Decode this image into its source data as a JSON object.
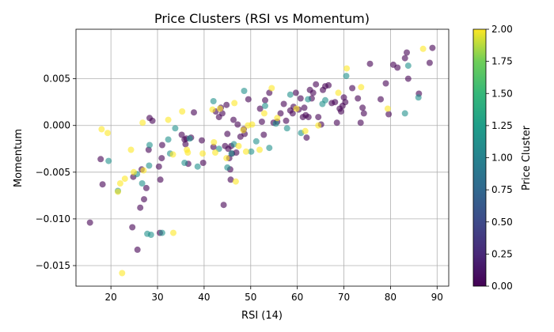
{
  "chart_data": {
    "type": "scatter",
    "title": "Price Clusters (RSI vs Momentum)",
    "xlabel": "RSI (14)",
    "ylabel": "Momentum",
    "xlim": [
      12.5,
      92.5
    ],
    "ylim": [
      -0.0172,
      0.0103
    ],
    "x_ticks": [
      20,
      30,
      40,
      50,
      60,
      70,
      80,
      90
    ],
    "y_ticks": [
      -0.015,
      -0.01,
      -0.005,
      0.0,
      0.005
    ],
    "y_tick_labels": [
      "−0.015",
      "−0.010",
      "−0.005",
      "0.000",
      "0.005"
    ],
    "grid": true,
    "colorbar": {
      "label": "Price Cluster",
      "min": 0.0,
      "max": 2.0,
      "ticks": [
        "0.00",
        "0.25",
        "0.50",
        "0.75",
        "1.00",
        "1.25",
        "1.50",
        "1.75",
        "2.00"
      ],
      "colormap": "viridis",
      "colors": [
        "#440154",
        "#21918c",
        "#fde725"
      ]
    },
    "point_alpha": 0.6,
    "series": [
      {
        "cluster": 0,
        "color": "#440154",
        "points": [
          [
            15.5,
            -0.0104
          ],
          [
            17.8,
            -0.0036
          ],
          [
            18.2,
            -0.0063
          ],
          [
            24.6,
            -0.0109
          ],
          [
            24.8,
            -0.0055
          ],
          [
            25.7,
            -0.0133
          ],
          [
            26.3,
            -0.0088
          ],
          [
            26.6,
            -0.0047
          ],
          [
            27.1,
            -0.0079
          ],
          [
            27.6,
            -0.0067
          ],
          [
            28.1,
            -0.0026
          ],
          [
            28.3,
            0.0008
          ],
          [
            28.9,
            0.0005
          ],
          [
            30.3,
            -0.0044
          ],
          [
            30.5,
            -0.0115
          ],
          [
            30.6,
            -0.0058
          ],
          [
            30.9,
            -0.0035
          ],
          [
            31.0,
            -0.0021
          ],
          [
            35.2,
            -0.001
          ],
          [
            35.8,
            -0.0015
          ],
          [
            36.0,
            -0.002
          ],
          [
            36.2,
            -0.0014
          ],
          [
            36.6,
            -0.0041
          ],
          [
            37.2,
            -0.0013
          ],
          [
            37.8,
            0.0014
          ],
          [
            39.5,
            -0.0016
          ],
          [
            39.8,
            -0.004
          ],
          [
            42.0,
            -0.0023
          ],
          [
            42.5,
            0.0015
          ],
          [
            43.2,
            0.0009
          ],
          [
            43.6,
            0.0019
          ],
          [
            43.9,
            0.0013
          ],
          [
            44.2,
            -0.0085
          ],
          [
            44.5,
            -0.0022
          ],
          [
            44.8,
            0.0022
          ],
          [
            45.0,
            -0.0009
          ],
          [
            45.2,
            -0.0025
          ],
          [
            45.4,
            -0.0035
          ],
          [
            45.6,
            -0.0047
          ],
          [
            45.7,
            -0.0058
          ],
          [
            45.8,
            -0.0022
          ],
          [
            46.0,
            -0.003
          ],
          [
            46.3,
            0.0006
          ],
          [
            46.9,
            -0.0029
          ],
          [
            47.2,
            0.0001
          ],
          [
            47.8,
            -0.0012
          ],
          [
            48.5,
            -0.0004
          ],
          [
            48.7,
            -0.0009
          ],
          [
            49.5,
            0.0028
          ],
          [
            52.0,
            0.0018
          ],
          [
            52.4,
            0.0004
          ],
          [
            52.8,
            -0.001
          ],
          [
            53.1,
            0.0027
          ],
          [
            54.0,
            0.0035
          ],
          [
            54.9,
            0.0003
          ],
          [
            55.7,
            0.0004
          ],
          [
            56.4,
            0.0013
          ],
          [
            57.1,
            0.0023
          ],
          [
            57.6,
            0.0005
          ],
          [
            58.5,
            0.0016
          ],
          [
            59.0,
            0.0013
          ],
          [
            59.2,
            0.002
          ],
          [
            59.7,
            0.0035
          ],
          [
            60.3,
            0.0017
          ],
          [
            60.7,
            0.0029
          ],
          [
            61.2,
            0.0009
          ],
          [
            61.5,
            0.0019
          ],
          [
            61.8,
            0.0011
          ],
          [
            62.0,
            -0.0013
          ],
          [
            62.4,
            0.0009
          ],
          [
            62.7,
            0.0038
          ],
          [
            63.1,
            0.0029
          ],
          [
            63.4,
            0.0035
          ],
          [
            64.0,
            0.0044
          ],
          [
            64.5,
            0.0009
          ],
          [
            65.1,
            0.0001
          ],
          [
            65.5,
            0.0038
          ],
          [
            66.0,
            0.0042
          ],
          [
            66.7,
            0.0043
          ],
          [
            67.4,
            0.0024
          ],
          [
            68.1,
            0.0025
          ],
          [
            68.5,
            0.0003
          ],
          [
            69.1,
            0.0018
          ],
          [
            69.4,
            0.0015
          ],
          [
            69.7,
            0.0021
          ],
          [
            70.0,
            0.003
          ],
          [
            70.3,
            0.0025
          ],
          [
            71.8,
            0.004
          ],
          [
            73.0,
            0.0029
          ],
          [
            73.6,
            0.0003
          ],
          [
            74.0,
            0.0019
          ],
          [
            74.3,
            0.0013
          ],
          [
            75.6,
            0.0066
          ],
          [
            77.9,
            0.0028
          ],
          [
            79.0,
            0.0045
          ],
          [
            79.6,
            0.0012
          ],
          [
            80.6,
            0.0065
          ],
          [
            81.5,
            0.0062
          ],
          [
            83.1,
            0.0072
          ],
          [
            83.5,
            0.0078
          ],
          [
            83.8,
            0.005
          ],
          [
            86.1,
            0.0034
          ],
          [
            88.4,
            0.0067
          ],
          [
            89.0,
            0.0083
          ]
        ]
      },
      {
        "cluster": 1,
        "color": "#21918c",
        "points": [
          [
            19.5,
            -0.0038
          ],
          [
            21.5,
            -0.007
          ],
          [
            25.6,
            -0.0052
          ],
          [
            26.7,
            -0.0062
          ],
          [
            27.8,
            -0.0116
          ],
          [
            28.2,
            -0.0043
          ],
          [
            28.3,
            -0.0021
          ],
          [
            28.6,
            -0.0117
          ],
          [
            31.0,
            -0.0115
          ],
          [
            32.3,
            -0.0015
          ],
          [
            32.7,
            -0.003
          ],
          [
            33.8,
            -0.0003
          ],
          [
            35.8,
            -0.004
          ],
          [
            36.9,
            -0.0014
          ],
          [
            38.6,
            -0.0044
          ],
          [
            42.0,
            0.0026
          ],
          [
            43.2,
            -0.0025
          ],
          [
            45.0,
            -0.0045
          ],
          [
            45.9,
            -0.003
          ],
          [
            46.4,
            -0.002
          ],
          [
            48.6,
            0.0037
          ],
          [
            50.1,
            -0.0028
          ],
          [
            51.2,
            -0.0017
          ],
          [
            53.1,
            0.0021
          ],
          [
            54.0,
            -0.0024
          ],
          [
            55.4,
            0.0002
          ],
          [
            57.8,
            -0.0003
          ],
          [
            58.5,
            0.0033
          ],
          [
            60.8,
            -0.0008
          ],
          [
            62.3,
            0.0028
          ],
          [
            65.4,
            0.0023
          ],
          [
            66.0,
            0.0027
          ],
          [
            70.5,
            0.0053
          ],
          [
            83.1,
            0.0013
          ],
          [
            83.8,
            0.0064
          ],
          [
            86.0,
            0.003
          ]
        ]
      },
      {
        "cluster": 2,
        "color": "#fde725",
        "points": [
          [
            18.0,
            -0.0004
          ],
          [
            19.3,
            -0.0008
          ],
          [
            21.5,
            -0.0071
          ],
          [
            22.0,
            -0.0062
          ],
          [
            22.4,
            -0.0158
          ],
          [
            23.0,
            -0.0057
          ],
          [
            24.3,
            -0.0026
          ],
          [
            24.9,
            -0.005
          ],
          [
            26.8,
            0.0003
          ],
          [
            27.0,
            -0.0048
          ],
          [
            32.3,
            0.0006
          ],
          [
            33.3,
            -0.0031
          ],
          [
            33.4,
            -0.0115
          ],
          [
            35.3,
            0.0015
          ],
          [
            36.3,
            -0.0026
          ],
          [
            36.5,
            -0.0029
          ],
          [
            39.7,
            -0.003
          ],
          [
            41.8,
            0.0017
          ],
          [
            42.1,
            -0.0018
          ],
          [
            42.4,
            -0.0029
          ],
          [
            43.4,
            0.0018
          ],
          [
            44.8,
            -0.0035
          ],
          [
            46.5,
            0.0024
          ],
          [
            46.8,
            -0.006
          ],
          [
            47.4,
            -0.0022
          ],
          [
            48.4,
            -0.0005
          ],
          [
            49.0,
            -0.0028
          ],
          [
            49.4,
            0.0
          ],
          [
            50.3,
            0.0001
          ],
          [
            51.9,
            -0.0026
          ],
          [
            52.9,
            0.0013
          ],
          [
            54.5,
            0.004
          ],
          [
            55.7,
            0.0008
          ],
          [
            59.8,
            0.0018
          ],
          [
            61.7,
            -0.0006
          ],
          [
            64.5,
            0.0
          ],
          [
            68.8,
            0.0035
          ],
          [
            70.6,
            0.0061
          ],
          [
            73.7,
            0.0041
          ],
          [
            79.4,
            0.0018
          ],
          [
            87.0,
            0.0082
          ]
        ]
      }
    ]
  }
}
